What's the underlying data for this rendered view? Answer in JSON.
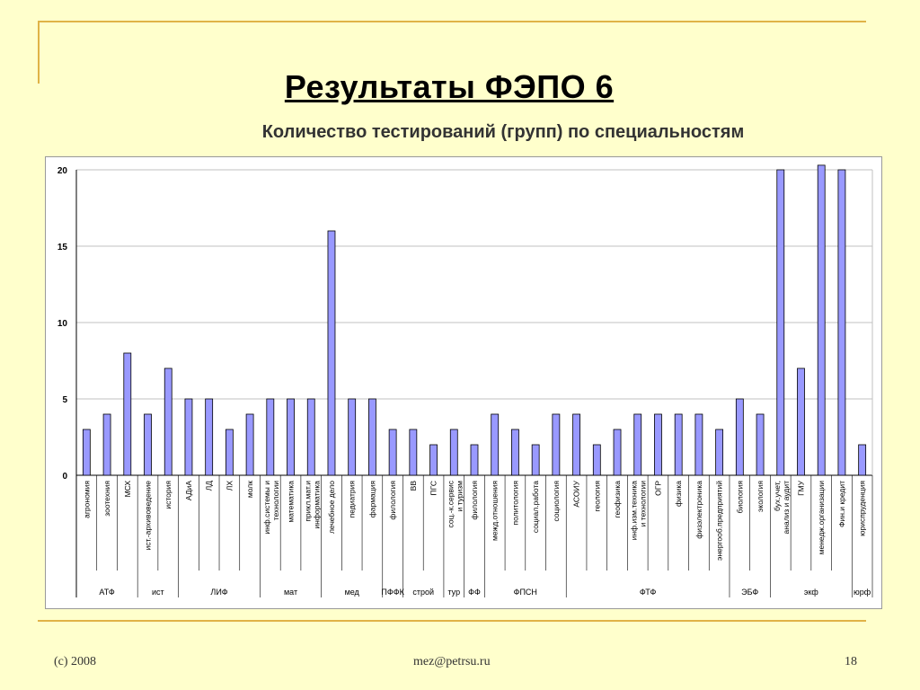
{
  "slide": {
    "title": "Результаты ФЭПО 6",
    "subtitle": "Количество тестирований (групп) по специальностям",
    "footer_left": "(c) 2008",
    "footer_center": "mez@petrsu.ru",
    "footer_right": "18"
  },
  "colors": {
    "bar_fill": "#9999FF",
    "bar_stroke": "#000000",
    "background": "#FFFFCC",
    "rule": "#E0B347"
  },
  "chart_data": {
    "type": "bar",
    "title": "",
    "xlabel": "",
    "ylabel": "",
    "ylim": [
      0,
      20
    ],
    "yticks": [
      0,
      5,
      10,
      15,
      20
    ],
    "grid": true,
    "categories": [
      "агрономия",
      "зоотехния",
      "МСХ",
      "ист.-архивоведение",
      "история",
      "АДиА",
      "ЛД",
      "ЛХ",
      "молк",
      "инф.системы и технологии",
      "математика",
      "прикл.мат.и информатика",
      "лечебное дело",
      "педиатрия",
      "фармация",
      "филология",
      "ВВ",
      "ПГС",
      "соц.-к.сервис и туризм",
      "филология",
      "межд.отношения",
      "политология",
      "социал.работа",
      "социология",
      "АСОИУ",
      "геология",
      "геофизика",
      "инф.изм.техника и технологии",
      "ОГР",
      "физика",
      "физэлектроника",
      "энергооб.предприятий",
      "биология",
      "экология",
      "бух.учет, анализ и аудит",
      "ГМУ",
      "менедж.организации",
      "Фин.и кредит",
      "юриспруденция"
    ],
    "values": [
      3,
      4,
      8,
      4,
      7,
      5,
      5,
      3,
      4,
      5,
      5,
      5,
      16,
      5,
      5,
      3,
      3,
      2,
      3,
      2,
      4,
      3,
      2,
      4,
      4,
      2,
      3,
      4,
      4,
      4,
      4,
      3,
      5,
      4,
      20,
      7,
      20.5,
      20,
      2
    ],
    "groups": [
      {
        "label": "АТФ",
        "start": 0,
        "end": 2
      },
      {
        "label": "ист",
        "start": 3,
        "end": 4
      },
      {
        "label": "ЛИФ",
        "start": 5,
        "end": 8
      },
      {
        "label": "мат",
        "start": 9,
        "end": 11
      },
      {
        "label": "мед",
        "start": 12,
        "end": 14
      },
      {
        "label": "ПФФК",
        "start": 15,
        "end": 15
      },
      {
        "label": "строй",
        "start": 16,
        "end": 17
      },
      {
        "label": "тур",
        "start": 18,
        "end": 18
      },
      {
        "label": "ФФ",
        "start": 19,
        "end": 19
      },
      {
        "label": "ФПСН",
        "start": 20,
        "end": 23
      },
      {
        "label": "ФТФ",
        "start": 24,
        "end": 31
      },
      {
        "label": "ЭБФ",
        "start": 32,
        "end": 33
      },
      {
        "label": "экф",
        "start": 34,
        "end": 37
      },
      {
        "label": "юрф",
        "start": 38,
        "end": 38
      }
    ]
  }
}
